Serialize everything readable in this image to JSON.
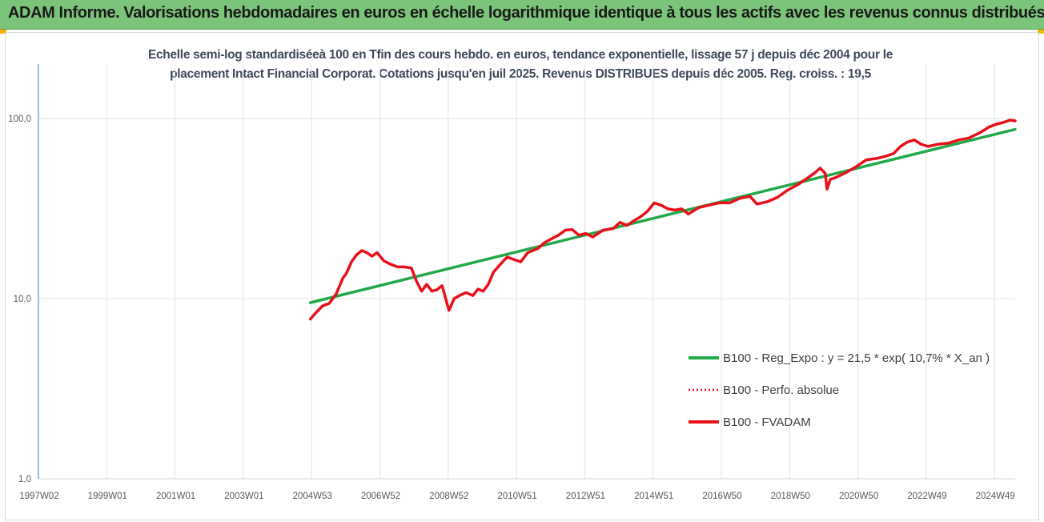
{
  "banner": {
    "title": "ADAM Informe. Valorisations hebdomadaires en euros en échelle logarithmique identique à tous les actifs avec les revenus connus distribués",
    "color": "#7cc47a",
    "corner_color": "#f2b600"
  },
  "chart_data": {
    "type": "line",
    "title_line1": "Echelle semi-log standardiséeà 100 en Tfin des cours hebdo. en euros, tendance exponentielle, lissage 57 j depuis déc 2004 pour le",
    "title_line2": "placement Intact Financial Corporat. Cotations jusqu'en juil 2025. Revenus DISTRIBUES depuis déc 2005.  Reg. croiss. : 19,5",
    "y_scale": "log",
    "ylim": [
      1,
      100
    ],
    "y_ticks": [
      "1,0",
      "10,0",
      "100,0"
    ],
    "x_tick_labels": [
      "1997W02",
      "1999W01",
      "2001W01",
      "2003W01",
      "2004W53",
      "2006W52",
      "2008W52",
      "2010W51",
      "2012W51",
      "2014W51",
      "2016W50",
      "2018W50",
      "2020W50",
      "2022W49",
      "2024W49"
    ],
    "x_range_years": [
      1997.0,
      2025.55
    ],
    "grid": "vertical",
    "legend_position": "right",
    "series": [
      {
        "name": "B100 - Reg_Expo : y = 21,5 * exp( 10,7% *  X_an )",
        "color": "#23a84a",
        "style": "solid-thick",
        "x": [
          2004.95,
          2025.55
        ],
        "y": [
          9.5,
          87.0
        ]
      },
      {
        "name": "B100 - Perfo. absolue",
        "color": "#e8111b",
        "style": "dotted",
        "x": [],
        "y": []
      },
      {
        "name": "B100 - FVADAM",
        "color": "#e8111b",
        "style": "solid-thick",
        "x": [
          2004.95,
          2005.1,
          2005.3,
          2005.5,
          2005.7,
          2005.9,
          2006.0,
          2006.15,
          2006.3,
          2006.45,
          2006.6,
          2006.75,
          2006.9,
          2007.1,
          2007.3,
          2007.5,
          2007.7,
          2007.9,
          2008.05,
          2008.2,
          2008.35,
          2008.5,
          2008.65,
          2008.8,
          2009.0,
          2009.15,
          2009.35,
          2009.5,
          2009.7,
          2009.85,
          2010.0,
          2010.15,
          2010.3,
          2010.5,
          2010.7,
          2010.9,
          2011.1,
          2011.3,
          2011.6,
          2011.8,
          2012.0,
          2012.2,
          2012.4,
          2012.6,
          2012.8,
          2013.0,
          2013.2,
          2013.5,
          2013.8,
          2014.0,
          2014.2,
          2014.4,
          2014.6,
          2014.8,
          2015.0,
          2015.2,
          2015.4,
          2015.6,
          2015.8,
          2016.0,
          2016.3,
          2016.6,
          2016.9,
          2017.2,
          2017.5,
          2017.8,
          2018.0,
          2018.3,
          2018.6,
          2018.9,
          2019.2,
          2019.5,
          2019.7,
          2019.85,
          2020.0,
          2020.05,
          2020.15,
          2020.3,
          2020.6,
          2020.9,
          2021.2,
          2021.5,
          2021.8,
          2022.0,
          2022.2,
          2022.4,
          2022.6,
          2022.8,
          2023.0,
          2023.3,
          2023.6,
          2023.9,
          2024.2,
          2024.5,
          2024.8,
          2025.0,
          2025.2,
          2025.4,
          2025.55
        ],
        "y": [
          7.7,
          8.3,
          9.1,
          9.4,
          10.6,
          13.0,
          13.8,
          16.0,
          17.5,
          18.5,
          18.0,
          17.2,
          18.0,
          16.2,
          15.5,
          15.0,
          15.0,
          14.8,
          12.5,
          11.0,
          12.0,
          11.0,
          11.2,
          11.8,
          8.6,
          10.0,
          10.5,
          10.8,
          10.4,
          11.3,
          11.0,
          12.0,
          14.0,
          15.5,
          17.0,
          16.5,
          16.0,
          18.0,
          19.0,
          20.5,
          21.5,
          22.5,
          24.0,
          24.2,
          22.5,
          23.0,
          22.0,
          24.0,
          24.5,
          26.5,
          25.5,
          27.0,
          28.5,
          30.5,
          34.0,
          33.0,
          31.5,
          31.0,
          31.5,
          29.5,
          32.0,
          33.0,
          34.0,
          34.0,
          36.0,
          37.0,
          33.5,
          34.5,
          36.5,
          40.0,
          43.0,
          47.0,
          50.0,
          53.0,
          49.5,
          40.5,
          46.0,
          47.0,
          50.0,
          54.0,
          59.0,
          60.0,
          62.0,
          64.0,
          70.0,
          74.0,
          76.0,
          72.0,
          70.0,
          72.0,
          73.0,
          76.0,
          78.0,
          83.0,
          90.0,
          93.0,
          95.0,
          98.0,
          97.0
        ]
      }
    ]
  }
}
